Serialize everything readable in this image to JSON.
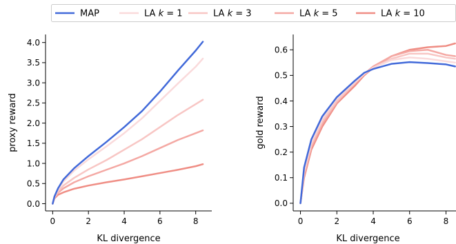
{
  "legend": {
    "position": "top",
    "entries": [
      {
        "parts": [
          {
            "t": "MAP",
            "i": false
          }
        ],
        "color": "#4169d9"
      },
      {
        "parts": [
          {
            "t": "LA ",
            "i": false
          },
          {
            "t": "k",
            "i": true
          },
          {
            "t": " = 1",
            "i": false
          }
        ],
        "color": "#fadadb"
      },
      {
        "parts": [
          {
            "t": "LA ",
            "i": false
          },
          {
            "t": "k",
            "i": true
          },
          {
            "t": " = 3",
            "i": false
          }
        ],
        "color": "#f8c6c4"
      },
      {
        "parts": [
          {
            "t": "LA ",
            "i": false
          },
          {
            "t": "k",
            "i": true
          },
          {
            "t": " = 5",
            "i": false
          }
        ],
        "color": "#f4a8a3"
      },
      {
        "parts": [
          {
            "t": "LA ",
            "i": false
          },
          {
            "t": "k",
            "i": true
          },
          {
            "t": " = 10",
            "i": false
          }
        ],
        "color": "#ef8d84"
      }
    ]
  },
  "chart_data": [
    {
      "type": "line",
      "xlabel": "KL divergence",
      "ylabel": "proxy reward",
      "xlim": [
        -0.4,
        8.9
      ],
      "ylim": [
        -0.18,
        4.2
      ],
      "xticks": [
        0,
        2,
        4,
        6,
        8
      ],
      "yticks": [
        0.0,
        0.5,
        1.0,
        1.5,
        2.0,
        2.5,
        3.0,
        3.5,
        4.0
      ],
      "grid": false,
      "series": [
        {
          "name": "MAP",
          "color": "#4169d9",
          "x": [
            0,
            0.1,
            0.3,
            0.6,
            1.2,
            2,
            3,
            4,
            5,
            6,
            7,
            8,
            8.4
          ],
          "y": [
            0,
            0.18,
            0.38,
            0.6,
            0.88,
            1.18,
            1.53,
            1.9,
            2.3,
            2.78,
            3.3,
            3.8,
            4.02
          ]
        },
        {
          "name": "LA k = 1",
          "color": "#fadadb",
          "x": [
            0,
            0.1,
            0.3,
            0.6,
            1.2,
            2,
            3,
            4,
            5,
            6,
            7,
            8,
            8.4
          ],
          "y": [
            0,
            0.17,
            0.35,
            0.55,
            0.82,
            1.1,
            1.42,
            1.75,
            2.12,
            2.55,
            2.98,
            3.4,
            3.6
          ]
        },
        {
          "name": "LA k = 3",
          "color": "#f8c6c4",
          "x": [
            0,
            0.1,
            0.3,
            0.6,
            1.2,
            2,
            3,
            4,
            5,
            6,
            7,
            8,
            8.4
          ],
          "y": [
            0,
            0.16,
            0.3,
            0.45,
            0.64,
            0.85,
            1.08,
            1.34,
            1.6,
            1.9,
            2.2,
            2.47,
            2.58
          ]
        },
        {
          "name": "LA k = 5",
          "color": "#f4a8a3",
          "x": [
            0,
            0.1,
            0.3,
            0.6,
            1.2,
            2,
            3,
            4,
            5,
            6,
            7,
            8,
            8.4
          ],
          "y": [
            0,
            0.14,
            0.27,
            0.38,
            0.53,
            0.68,
            0.84,
            1.0,
            1.18,
            1.38,
            1.58,
            1.75,
            1.82
          ]
        },
        {
          "name": "LA k = 10",
          "color": "#ef8d84",
          "x": [
            0,
            0.1,
            0.3,
            0.6,
            1.2,
            2,
            3,
            4,
            5,
            6,
            7,
            8,
            8.4
          ],
          "y": [
            0,
            0.13,
            0.22,
            0.28,
            0.37,
            0.45,
            0.53,
            0.6,
            0.68,
            0.76,
            0.84,
            0.93,
            0.98
          ]
        }
      ]
    },
    {
      "type": "line",
      "xlabel": "KL divergence",
      "ylabel": "gold reward",
      "xlim": [
        -0.4,
        8.55
      ],
      "ylim": [
        -0.03,
        0.66
      ],
      "xticks": [
        0,
        2,
        4,
        6,
        8
      ],
      "yticks": [
        0.0,
        0.1,
        0.2,
        0.3,
        0.4,
        0.5,
        0.6
      ],
      "grid": false,
      "series": [
        {
          "name": "MAP",
          "color": "#4169d9",
          "x": [
            0,
            0.2,
            0.6,
            1.2,
            2,
            3,
            3.5,
            4,
            5,
            6,
            7,
            8,
            8.5
          ],
          "y": [
            0,
            0.14,
            0.25,
            0.34,
            0.415,
            0.48,
            0.51,
            0.525,
            0.545,
            0.552,
            0.548,
            0.543,
            0.535
          ]
        },
        {
          "name": "LA k = 1",
          "color": "#fadadb",
          "x": [
            0,
            0.2,
            0.6,
            1.2,
            2,
            3,
            3.5,
            4,
            5,
            6,
            7,
            8,
            8.5
          ],
          "y": [
            0,
            0.13,
            0.24,
            0.33,
            0.41,
            0.475,
            0.505,
            0.53,
            0.56,
            0.57,
            0.565,
            0.555,
            0.55
          ]
        },
        {
          "name": "LA k = 3",
          "color": "#f8c6c4",
          "x": [
            0,
            0.2,
            0.6,
            1.2,
            2,
            3,
            3.5,
            4,
            5,
            6,
            7,
            8,
            8.5
          ],
          "y": [
            0,
            0.12,
            0.23,
            0.32,
            0.4,
            0.47,
            0.505,
            0.53,
            0.565,
            0.585,
            0.585,
            0.57,
            0.565
          ]
        },
        {
          "name": "LA k = 5",
          "color": "#f4a8a3",
          "x": [
            0,
            0.2,
            0.6,
            1.2,
            2,
            3,
            3.5,
            4,
            5,
            6,
            7,
            8,
            8.5
          ],
          "y": [
            0,
            0.11,
            0.22,
            0.31,
            0.395,
            0.47,
            0.505,
            0.535,
            0.575,
            0.595,
            0.6,
            0.58,
            0.575
          ]
        },
        {
          "name": "LA k = 10",
          "color": "#ef8d84",
          "x": [
            0,
            0.2,
            0.6,
            1.2,
            2,
            3,
            3.5,
            4,
            5,
            6,
            7,
            8,
            8.5
          ],
          "y": [
            0,
            0.1,
            0.21,
            0.3,
            0.39,
            0.46,
            0.5,
            0.53,
            0.575,
            0.6,
            0.61,
            0.615,
            0.625
          ]
        }
      ]
    }
  ]
}
